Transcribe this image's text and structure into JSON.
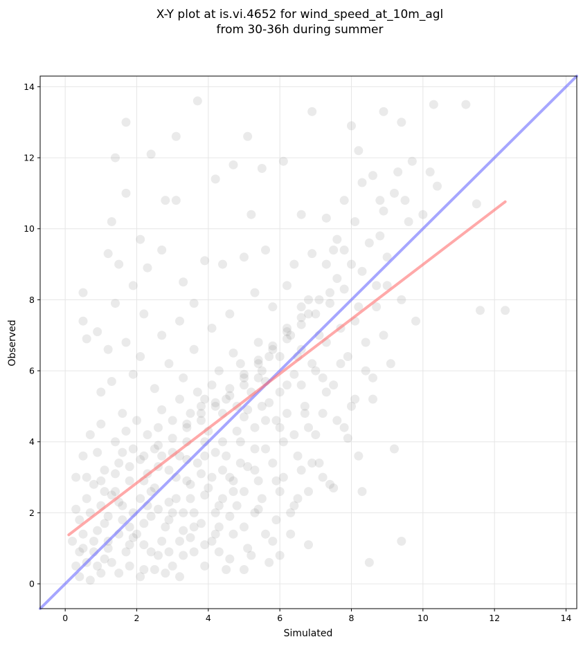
{
  "chart_data": {
    "type": "scatter",
    "title_line1": "X-Y plot at is.vi.4652 for wind_speed_at_10m_agl",
    "title_line2": "from 30-36h during summer",
    "xlabel": "Simulated",
    "ylabel": "Observed",
    "xlim": [
      -0.7,
      14.3
    ],
    "ylim": [
      -0.7,
      14.3
    ],
    "xticks": [
      0,
      2,
      4,
      6,
      8,
      10,
      12,
      14
    ],
    "yticks": [
      0,
      2,
      4,
      6,
      8,
      10,
      12,
      14
    ],
    "grid": true,
    "colors": {
      "points": "#808080",
      "identity_line": "#6b6bff",
      "fit_line": "#ff7070",
      "grid": "#e6e6e6"
    },
    "identity_line": {
      "x": [
        -0.7,
        14.3
      ],
      "y": [
        -0.7,
        14.3
      ]
    },
    "fit_line": {
      "x": [
        0.1,
        12.3
      ],
      "y": [
        1.38,
        10.76
      ]
    },
    "points": [
      [
        0.3,
        0.5
      ],
      [
        0.4,
        0.2
      ],
      [
        0.5,
        1.0
      ],
      [
        0.6,
        0.6
      ],
      [
        0.7,
        0.1
      ],
      [
        0.8,
        0.9
      ],
      [
        0.9,
        1.5
      ],
      [
        1.0,
        0.3
      ],
      [
        0.4,
        1.8
      ],
      [
        0.6,
        2.4
      ],
      [
        0.3,
        3.0
      ],
      [
        0.5,
        3.6
      ],
      [
        0.7,
        2.0
      ],
      [
        0.8,
        2.8
      ],
      [
        1.0,
        2.2
      ],
      [
        1.1,
        3.2
      ],
      [
        1.2,
        1.2
      ],
      [
        1.3,
        0.6
      ],
      [
        1.4,
        2.6
      ],
      [
        1.5,
        3.4
      ],
      [
        1.6,
        1.8
      ],
      [
        1.7,
        0.9
      ],
      [
        1.8,
        2.9
      ],
      [
        1.9,
        3.8
      ],
      [
        2.0,
        1.4
      ],
      [
        2.1,
        2.4
      ],
      [
        2.2,
        0.4
      ],
      [
        2.3,
        3.1
      ],
      [
        2.4,
        1.9
      ],
      [
        2.5,
        2.7
      ],
      [
        2.6,
        0.8
      ],
      [
        2.7,
        3.6
      ],
      [
        2.8,
        1.6
      ],
      [
        2.9,
        2.3
      ],
      [
        3.0,
        0.5
      ],
      [
        3.1,
        3.0
      ],
      [
        3.2,
        1.2
      ],
      [
        3.3,
        2.0
      ],
      [
        3.4,
        4.0
      ],
      [
        3.5,
        2.8
      ],
      [
        3.6,
        0.9
      ],
      [
        3.7,
        3.4
      ],
      [
        3.8,
        1.7
      ],
      [
        3.9,
        2.5
      ],
      [
        4.0,
        4.3
      ],
      [
        4.1,
        3.0
      ],
      [
        4.2,
        1.4
      ],
      [
        4.3,
        2.2
      ],
      [
        4.4,
        4.8
      ],
      [
        4.5,
        3.6
      ],
      [
        4.6,
        0.7
      ],
      [
        4.7,
        2.9
      ],
      [
        4.8,
        5.0
      ],
      [
        4.9,
        4.0
      ],
      [
        5.0,
        1.6
      ],
      [
        5.1,
        3.3
      ],
      [
        5.2,
        5.4
      ],
      [
        5.3,
        4.4
      ],
      [
        5.4,
        2.1
      ],
      [
        5.5,
        6.0
      ],
      [
        5.6,
        3.8
      ],
      [
        5.7,
        5.1
      ],
      [
        5.8,
        1.2
      ],
      [
        5.9,
        4.6
      ],
      [
        6.0,
        6.4
      ],
      [
        6.1,
        3.0
      ],
      [
        6.2,
        5.6
      ],
      [
        6.3,
        7.0
      ],
      [
        6.4,
        4.2
      ],
      [
        6.5,
        2.4
      ],
      [
        6.6,
        6.6
      ],
      [
        6.7,
        5.0
      ],
      [
        6.8,
        7.6
      ],
      [
        6.9,
        3.4
      ],
      [
        7.0,
        6.0
      ],
      [
        7.1,
        8.0
      ],
      [
        7.2,
        4.8
      ],
      [
        7.3,
        6.8
      ],
      [
        7.4,
        2.8
      ],
      [
        7.5,
        5.6
      ],
      [
        7.6,
        8.6
      ],
      [
        7.7,
        7.2
      ],
      [
        7.8,
        4.4
      ],
      [
        7.9,
        6.4
      ],
      [
        8.0,
        9.0
      ],
      [
        8.1,
        5.2
      ],
      [
        8.2,
        7.8
      ],
      [
        8.3,
        2.6
      ],
      [
        8.4,
        6.8
      ],
      [
        8.5,
        9.6
      ],
      [
        8.6,
        5.8
      ],
      [
        8.7,
        8.4
      ],
      [
        8.8,
        10.8
      ],
      [
        8.9,
        7.0
      ],
      [
        9.0,
        9.2
      ],
      [
        9.1,
        6.2
      ],
      [
        9.2,
        11.0
      ],
      [
        9.4,
        8.0
      ],
      [
        9.6,
        10.2
      ],
      [
        9.8,
        7.4
      ],
      [
        10.0,
        10.4
      ],
      [
        10.2,
        11.6
      ],
      [
        10.4,
        11.2
      ],
      [
        11.2,
        13.5
      ],
      [
        10.3,
        13.5
      ],
      [
        11.5,
        10.7
      ],
      [
        11.6,
        7.7
      ],
      [
        12.3,
        7.7
      ],
      [
        9.4,
        1.2
      ],
      [
        8.5,
        0.6
      ],
      [
        9.2,
        3.8
      ],
      [
        8.6,
        5.2
      ],
      [
        8.2,
        3.6
      ],
      [
        1.7,
        13.0
      ],
      [
        3.7,
        13.6
      ],
      [
        6.9,
        13.3
      ],
      [
        8.0,
        12.9
      ],
      [
        8.9,
        13.3
      ],
      [
        9.4,
        13.0
      ],
      [
        1.4,
        12.0
      ],
      [
        2.4,
        12.1
      ],
      [
        3.1,
        12.6
      ],
      [
        5.1,
        12.6
      ],
      [
        6.1,
        11.9
      ],
      [
        8.2,
        12.2
      ],
      [
        4.7,
        11.8
      ],
      [
        5.5,
        11.7
      ],
      [
        1.3,
        10.2
      ],
      [
        1.7,
        11.0
      ],
      [
        2.8,
        10.8
      ],
      [
        3.1,
        10.8
      ],
      [
        5.2,
        10.4
      ],
      [
        6.6,
        10.4
      ],
      [
        6.9,
        9.3
      ],
      [
        4.2,
        11.4
      ],
      [
        3.9,
        9.1
      ],
      [
        2.7,
        9.4
      ],
      [
        1.2,
        9.3
      ],
      [
        1.5,
        9.0
      ],
      [
        2.1,
        9.7
      ],
      [
        2.3,
        8.9
      ],
      [
        1.9,
        8.4
      ],
      [
        0.5,
        8.2
      ],
      [
        1.4,
        7.9
      ],
      [
        3.3,
        8.5
      ],
      [
        4.4,
        9.0
      ],
      [
        5.0,
        9.2
      ],
      [
        5.6,
        9.4
      ],
      [
        6.4,
        9.0
      ],
      [
        7.5,
        9.4
      ],
      [
        0.5,
        7.4
      ],
      [
        0.9,
        7.1
      ],
      [
        1.2,
        6.6
      ],
      [
        1.7,
        6.8
      ],
      [
        2.2,
        7.6
      ],
      [
        2.7,
        7.0
      ],
      [
        3.2,
        7.4
      ],
      [
        3.6,
        7.9
      ],
      [
        4.1,
        7.2
      ],
      [
        4.6,
        7.6
      ],
      [
        5.3,
        8.2
      ],
      [
        5.8,
        7.8
      ],
      [
        6.2,
        8.4
      ],
      [
        6.8,
        8.0
      ],
      [
        7.3,
        9.0
      ],
      [
        0.6,
        6.9
      ],
      [
        1.0,
        5.4
      ],
      [
        1.3,
        5.7
      ],
      [
        1.6,
        4.8
      ],
      [
        1.9,
        5.9
      ],
      [
        2.1,
        6.4
      ],
      [
        2.5,
        5.5
      ],
      [
        2.9,
        6.2
      ],
      [
        3.3,
        5.8
      ],
      [
        3.6,
        6.6
      ],
      [
        3.9,
        5.2
      ],
      [
        4.3,
        6.0
      ],
      [
        4.7,
        6.5
      ],
      [
        5.0,
        5.8
      ],
      [
        5.4,
        6.8
      ],
      [
        0.2,
        1.2
      ],
      [
        0.3,
        2.1
      ],
      [
        0.5,
        1.4
      ],
      [
        0.6,
        3.0
      ],
      [
        0.7,
        4.2
      ],
      [
        0.9,
        3.7
      ],
      [
        1.0,
        4.5
      ],
      [
        1.1,
        2.6
      ],
      [
        1.2,
        1.0
      ],
      [
        1.4,
        4.0
      ],
      [
        1.5,
        1.4
      ],
      [
        1.6,
        2.2
      ],
      [
        1.7,
        4.3
      ],
      [
        1.8,
        1.1
      ],
      [
        1.9,
        2.0
      ],
      [
        2.0,
        4.6
      ],
      [
        2.1,
        3.5
      ],
      [
        2.2,
        1.7
      ],
      [
        2.3,
        4.2
      ],
      [
        2.4,
        0.9
      ],
      [
        2.5,
        3.8
      ],
      [
        2.6,
        2.1
      ],
      [
        2.7,
        4.9
      ],
      [
        2.8,
        0.3
      ],
      [
        2.9,
        3.2
      ],
      [
        3.0,
        4.6
      ],
      [
        3.1,
        2.4
      ],
      [
        3.2,
        5.2
      ],
      [
        3.3,
        1.5
      ],
      [
        3.4,
        3.5
      ],
      [
        3.5,
        4.8
      ],
      [
        3.6,
        2.0
      ],
      [
        3.7,
        5.4
      ],
      [
        3.8,
        3.1
      ],
      [
        3.9,
        0.5
      ],
      [
        4.0,
        2.7
      ],
      [
        4.1,
        5.6
      ],
      [
        4.2,
        3.7
      ],
      [
        4.3,
        0.9
      ],
      [
        4.4,
        2.4
      ],
      [
        4.5,
        5.2
      ],
      [
        4.6,
        3.0
      ],
      [
        4.7,
        1.4
      ],
      [
        4.8,
        4.3
      ],
      [
        4.9,
        6.2
      ],
      [
        5.0,
        2.6
      ],
      [
        5.1,
        4.9
      ],
      [
        5.2,
        0.8
      ],
      [
        5.3,
        3.8
      ],
      [
        5.4,
        5.8
      ],
      [
        5.5,
        2.4
      ],
      [
        5.6,
        4.6
      ],
      [
        5.7,
        6.4
      ],
      [
        5.8,
        3.4
      ],
      [
        5.9,
        1.8
      ],
      [
        6.0,
        5.4
      ],
      [
        6.1,
        4.0
      ],
      [
        6.2,
        7.2
      ],
      [
        6.3,
        2.0
      ],
      [
        6.4,
        5.9
      ],
      [
        6.5,
        3.6
      ],
      [
        6.6,
        7.8
      ],
      [
        6.7,
        4.8
      ],
      [
        6.8,
        1.1
      ],
      [
        6.9,
        6.2
      ],
      [
        7.0,
        4.2
      ],
      [
        7.1,
        7.0
      ],
      [
        7.2,
        3.0
      ],
      [
        7.3,
        5.4
      ],
      [
        7.4,
        8.2
      ],
      [
        7.6,
        4.6
      ],
      [
        7.7,
        6.2
      ],
      [
        7.8,
        9.4
      ],
      [
        8.0,
        5.0
      ],
      [
        8.1,
        7.4
      ],
      [
        8.3,
        8.8
      ],
      [
        8.4,
        6.0
      ],
      [
        8.7,
        7.8
      ],
      [
        8.8,
        9.8
      ],
      [
        9.0,
        8.4
      ],
      [
        0.9,
        0.5
      ],
      [
        1.2,
        1.9
      ],
      [
        1.5,
        0.3
      ],
      [
        1.8,
        1.6
      ],
      [
        2.1,
        0.2
      ],
      [
        2.4,
        2.6
      ],
      [
        2.7,
        1.2
      ],
      [
        3.0,
        2.0
      ],
      [
        3.3,
        0.8
      ],
      [
        3.6,
        1.6
      ],
      [
        3.9,
        3.6
      ],
      [
        4.2,
        2.0
      ],
      [
        4.5,
        0.4
      ],
      [
        4.8,
        2.2
      ],
      [
        5.1,
        1.0
      ],
      [
        5.4,
        2.9
      ],
      [
        5.7,
        0.6
      ],
      [
        6.0,
        2.6
      ],
      [
        6.3,
        1.4
      ],
      [
        6.6,
        3.2
      ],
      [
        2.2,
        2.9
      ],
      [
        2.6,
        3.3
      ],
      [
        3.0,
        3.7
      ],
      [
        3.4,
        4.4
      ],
      [
        3.8,
        4.6
      ],
      [
        4.2,
        5.0
      ],
      [
        4.6,
        5.3
      ],
      [
        5.0,
        5.6
      ],
      [
        5.4,
        6.2
      ],
      [
        5.8,
        6.6
      ],
      [
        6.2,
        6.9
      ],
      [
        6.6,
        7.3
      ],
      [
        7.0,
        7.6
      ],
      [
        7.4,
        7.9
      ],
      [
        7.8,
        8.3
      ],
      [
        1.0,
        2.9
      ],
      [
        1.4,
        3.1
      ],
      [
        1.8,
        3.3
      ],
      [
        2.2,
        3.6
      ],
      [
        2.6,
        3.9
      ],
      [
        3.0,
        4.1
      ],
      [
        3.4,
        4.5
      ],
      [
        3.8,
        4.8
      ],
      [
        4.2,
        5.1
      ],
      [
        4.6,
        5.5
      ],
      [
        5.0,
        5.9
      ],
      [
        5.4,
        6.3
      ],
      [
        5.8,
        6.7
      ],
      [
        6.2,
        7.1
      ],
      [
        6.6,
        7.5
      ],
      [
        1.1,
        1.7
      ],
      [
        1.3,
        2.5
      ],
      [
        1.6,
        3.7
      ],
      [
        1.9,
        1.3
      ],
      [
        2.3,
        2.2
      ],
      [
        2.6,
        4.4
      ],
      [
        2.9,
        1.8
      ],
      [
        3.2,
        3.6
      ],
      [
        3.5,
        2.4
      ],
      [
        3.8,
        5.0
      ],
      [
        4.1,
        1.2
      ],
      [
        4.4,
        4.0
      ],
      [
        4.7,
        2.6
      ],
      [
        5.0,
        4.7
      ],
      [
        5.3,
        3.2
      ],
      [
        5.6,
        5.7
      ],
      [
        5.9,
        2.9
      ],
      [
        6.2,
        4.8
      ],
      [
        6.5,
        6.4
      ],
      [
        6.8,
        4.4
      ],
      [
        0.4,
        0.9
      ],
      [
        0.8,
        1.2
      ],
      [
        1.1,
        0.7
      ],
      [
        1.5,
        2.3
      ],
      [
        1.8,
        0.5
      ],
      [
        2.2,
        1.1
      ],
      [
        2.5,
        0.4
      ],
      [
        2.9,
        0.9
      ],
      [
        3.2,
        0.2
      ],
      [
        3.5,
        1.3
      ],
      [
        3.9,
        1.1
      ],
      [
        4.3,
        1.6
      ],
      [
        4.6,
        1.9
      ],
      [
        5.0,
        0.4
      ],
      [
        5.3,
        2.0
      ],
      [
        5.6,
        1.4
      ],
      [
        6.0,
        0.8
      ],
      [
        6.4,
        2.2
      ],
      [
        6.8,
        2.6
      ],
      [
        7.1,
        3.4
      ],
      [
        7.5,
        2.7
      ],
      [
        7.9,
        4.1
      ],
      [
        7.2,
        5.8
      ],
      [
        6.6,
        5.6
      ],
      [
        6.0,
        4.4
      ],
      [
        5.5,
        5.0
      ],
      [
        4.9,
        3.4
      ],
      [
        4.4,
        3.2
      ],
      [
        3.9,
        4.0
      ],
      [
        3.4,
        2.9
      ],
      [
        7.3,
        10.3
      ],
      [
        7.8,
        10.8
      ],
      [
        8.3,
        11.3
      ],
      [
        8.6,
        11.5
      ],
      [
        9.3,
        11.6
      ],
      [
        9.7,
        11.9
      ],
      [
        8.1,
        10.2
      ],
      [
        7.6,
        9.7
      ],
      [
        8.9,
        10.5
      ],
      [
        9.5,
        10.8
      ]
    ]
  }
}
